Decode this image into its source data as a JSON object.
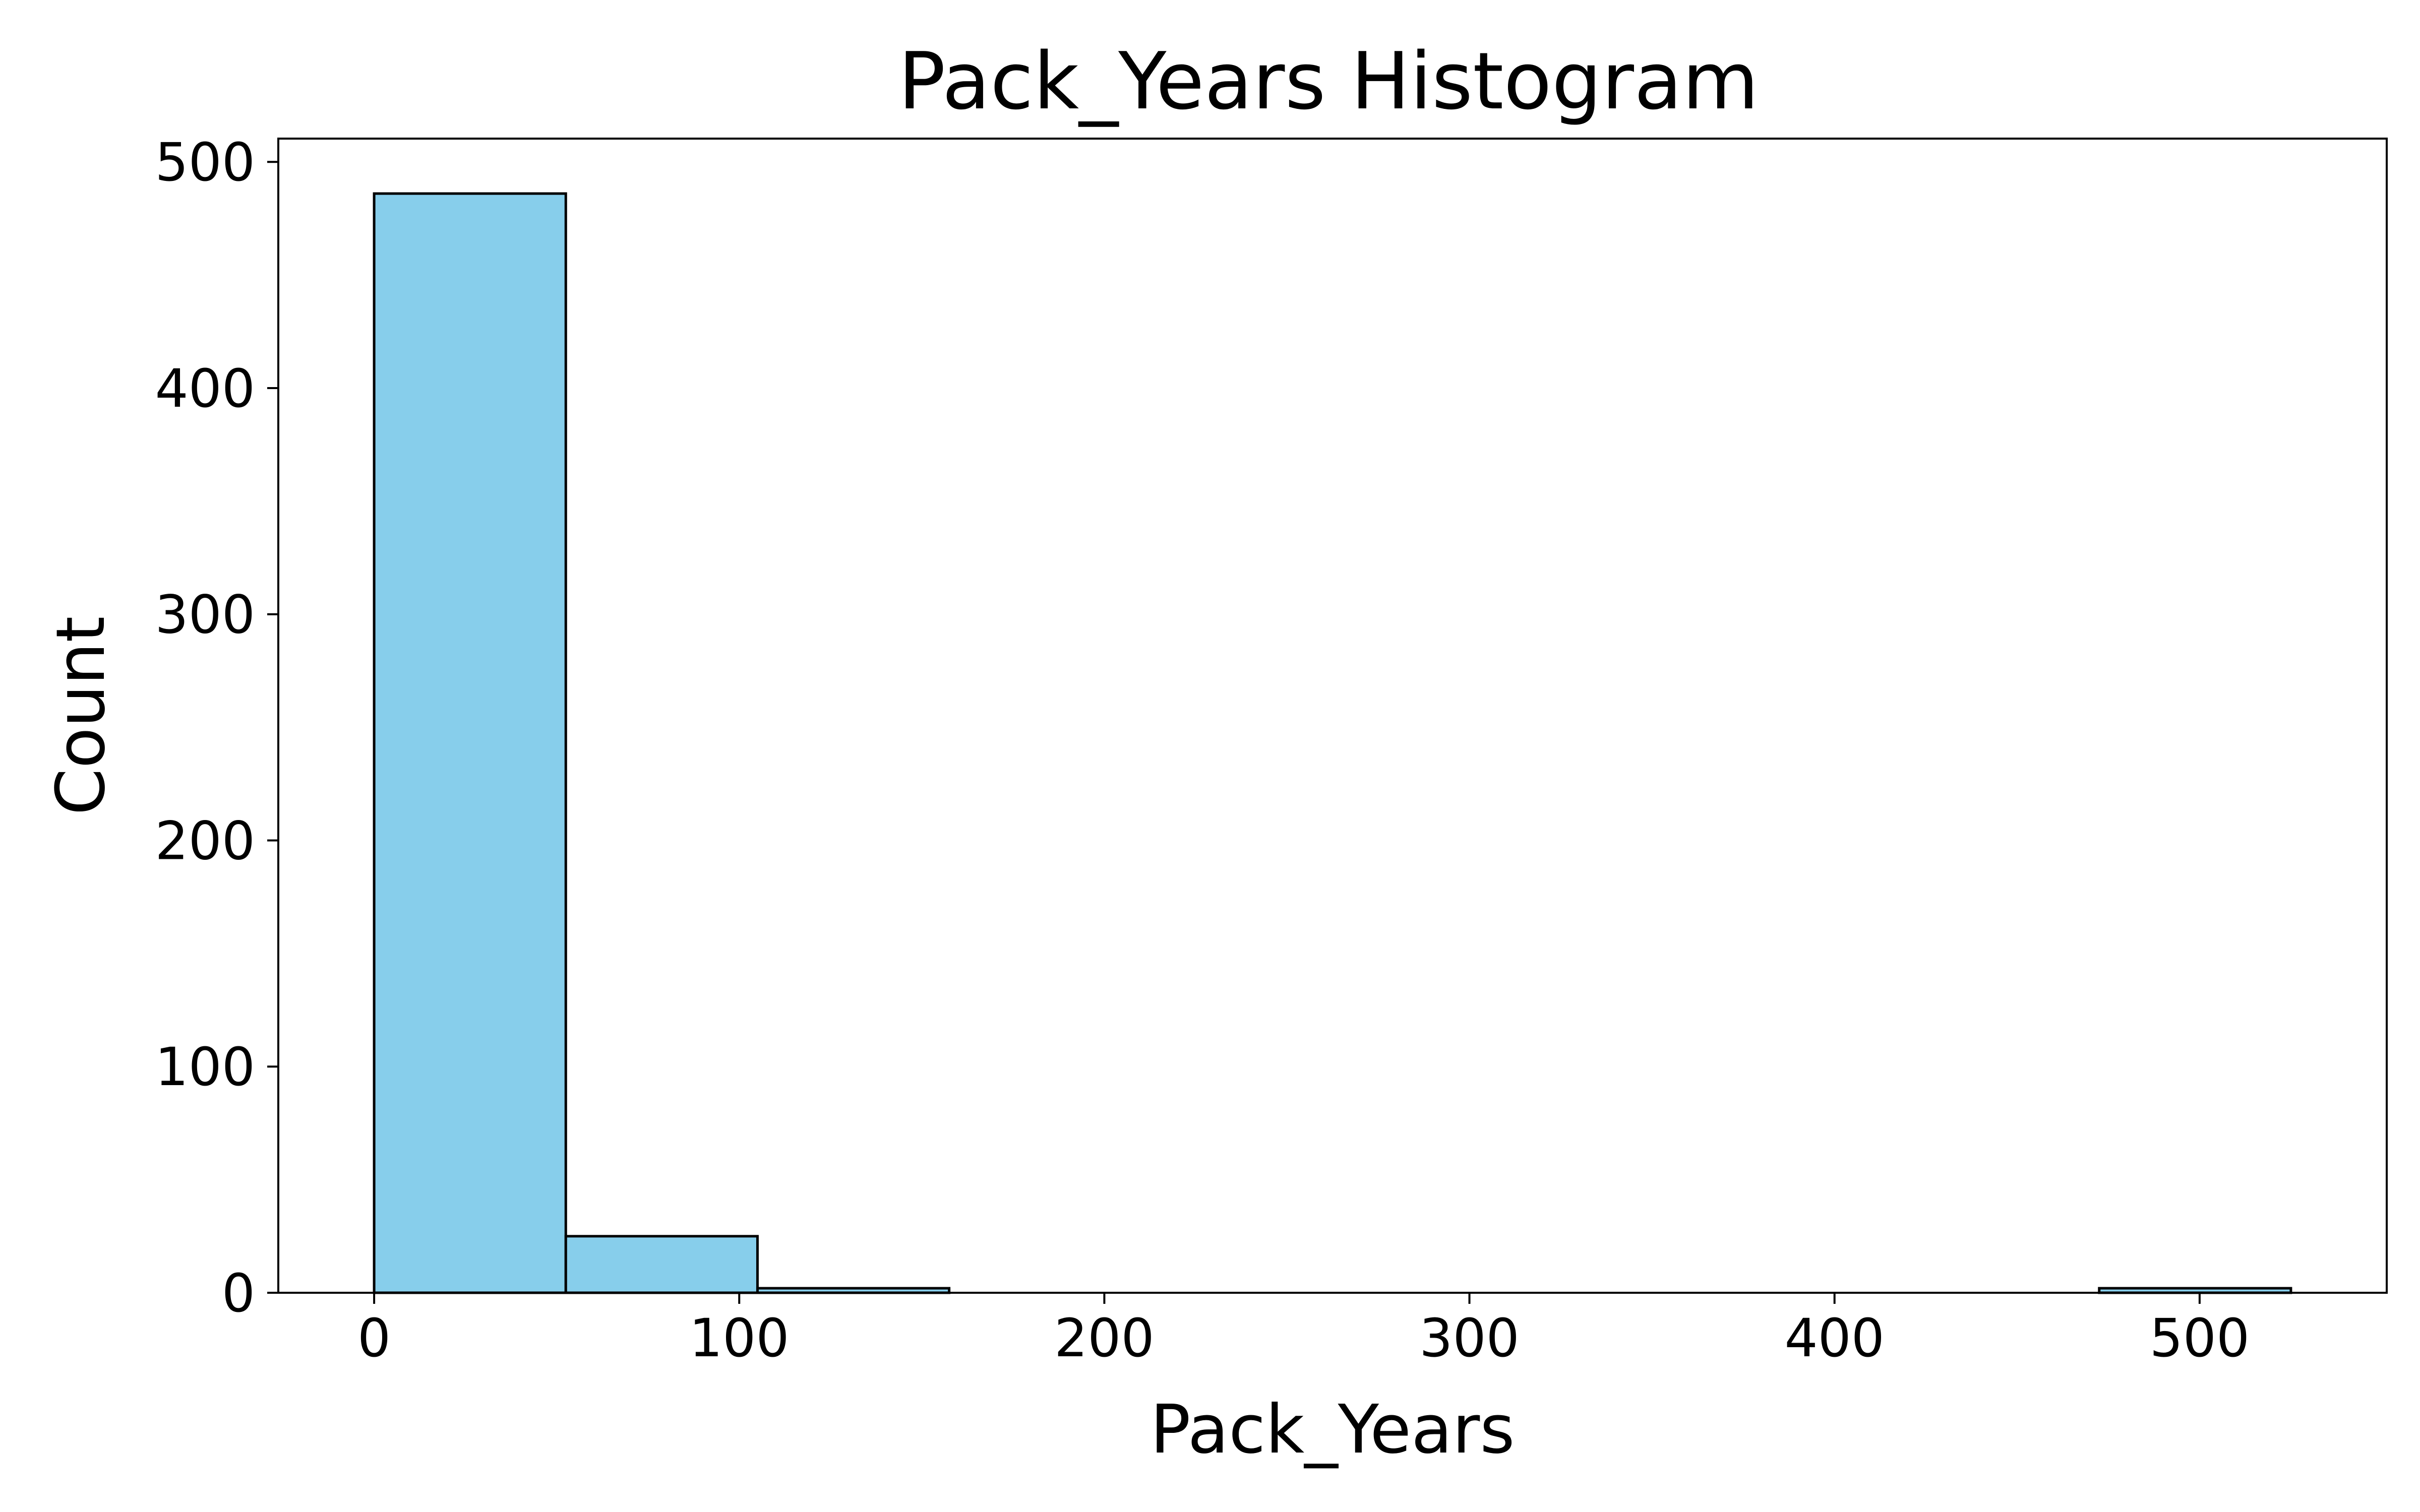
{
  "chart_data": {
    "type": "bar",
    "title": "Pack_Years Histogram",
    "xlabel": "Pack_Years",
    "ylabel": "Count",
    "bin_edges": [
      0,
      52.5,
      105,
      157.5,
      210,
      262.5,
      315,
      367.5,
      420,
      472.5,
      525
    ],
    "values": [
      486,
      25,
      2,
      0,
      0,
      0,
      0,
      0,
      0,
      2
    ],
    "xlim": [
      -26.25,
      551.25
    ],
    "ylim": [
      0,
      510.3
    ],
    "xticks": [
      0,
      100,
      200,
      300,
      400,
      500
    ],
    "yticks": [
      0,
      100,
      200,
      300,
      400,
      500
    ],
    "grid": false,
    "colors": {
      "bar_fill": "#87CEEB",
      "bar_edge": "#000000"
    }
  }
}
